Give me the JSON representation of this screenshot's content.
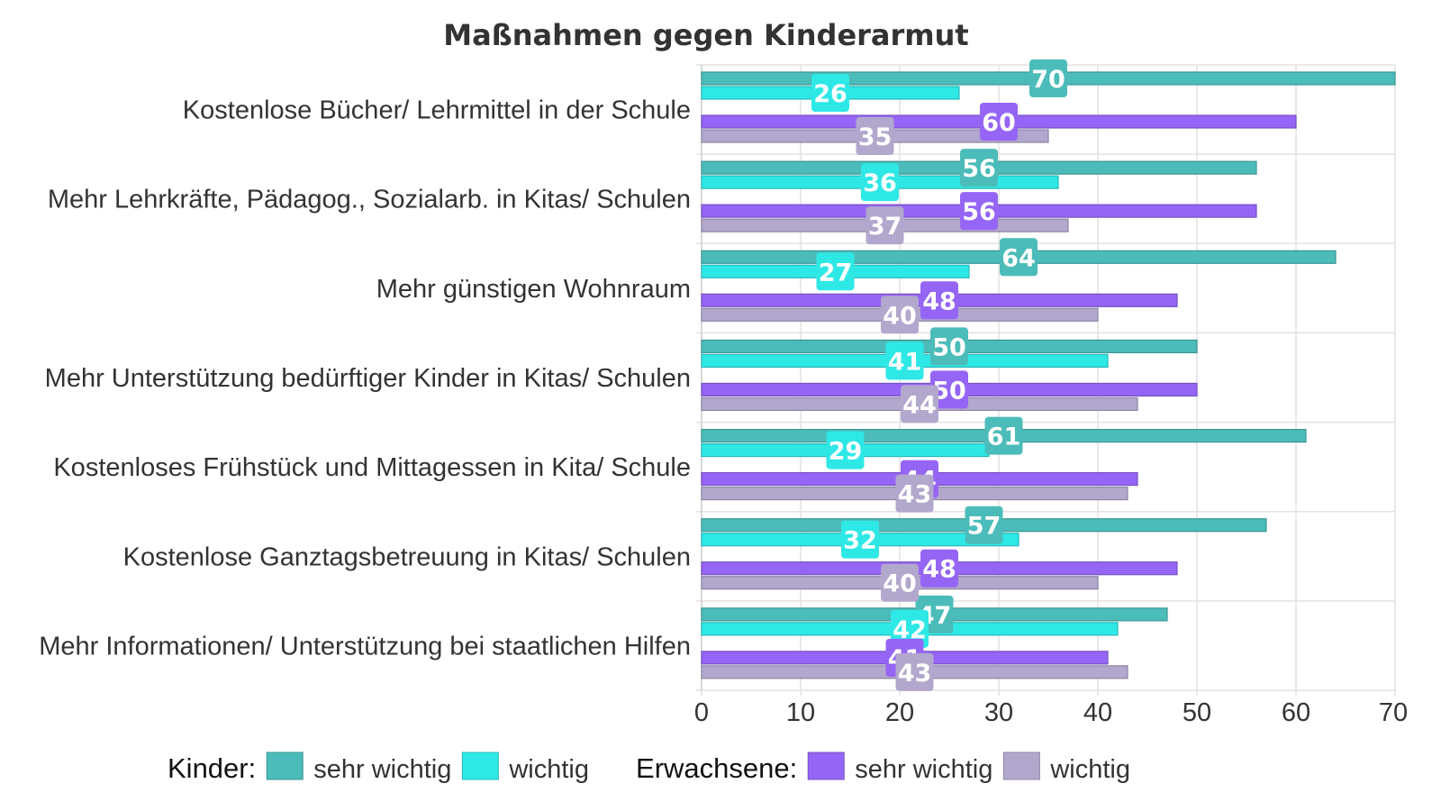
{
  "chart_data": {
    "type": "bar",
    "orientation": "horizontal",
    "title": "Maßnahmen gegen Kinderarmut",
    "categories": [
      "Kostenlose Bücher/ Lehrmittel in der Schule",
      "Mehr Lehrkräfte, Pädagog., Sozialarb. in Kitas/ Schulen",
      "Mehr günstigen Wohnraum",
      "Mehr Unterstützung bedürftiger Kinder in Kitas/ Schulen",
      "Kostenloses Frühstück und Mittagessen in Kita/ Schule",
      "Kostenlose Ganztagsbetreuung in Kitas/ Schulen",
      "Mehr Informationen/ Unterstützung bei staatlichen Hilfen"
    ],
    "series": [
      {
        "group": "Kinder:",
        "name": "sehr wichtig",
        "color": "#4bbcb9",
        "values": [
          70,
          56,
          64,
          50,
          61,
          57,
          47
        ]
      },
      {
        "group": "Kinder:",
        "name": "wichtig",
        "color": "#2ee8e6",
        "values": [
          26,
          36,
          27,
          41,
          29,
          32,
          42
        ]
      },
      {
        "group": "Erwachsene:",
        "name": "sehr wichtig",
        "color": "#9565f5",
        "values": [
          60,
          56,
          48,
          50,
          44,
          48,
          41
        ]
      },
      {
        "group": "Erwachsene:",
        "name": "wichtig",
        "color": "#b2a7cc",
        "values": [
          35,
          37,
          40,
          44,
          43,
          40,
          43
        ]
      }
    ],
    "xlim": [
      0,
      70
    ],
    "xticks": [
      0,
      10,
      20,
      30,
      40,
      50,
      60,
      70
    ],
    "grid": true,
    "data_labels": true,
    "legend_position": "bottom"
  }
}
